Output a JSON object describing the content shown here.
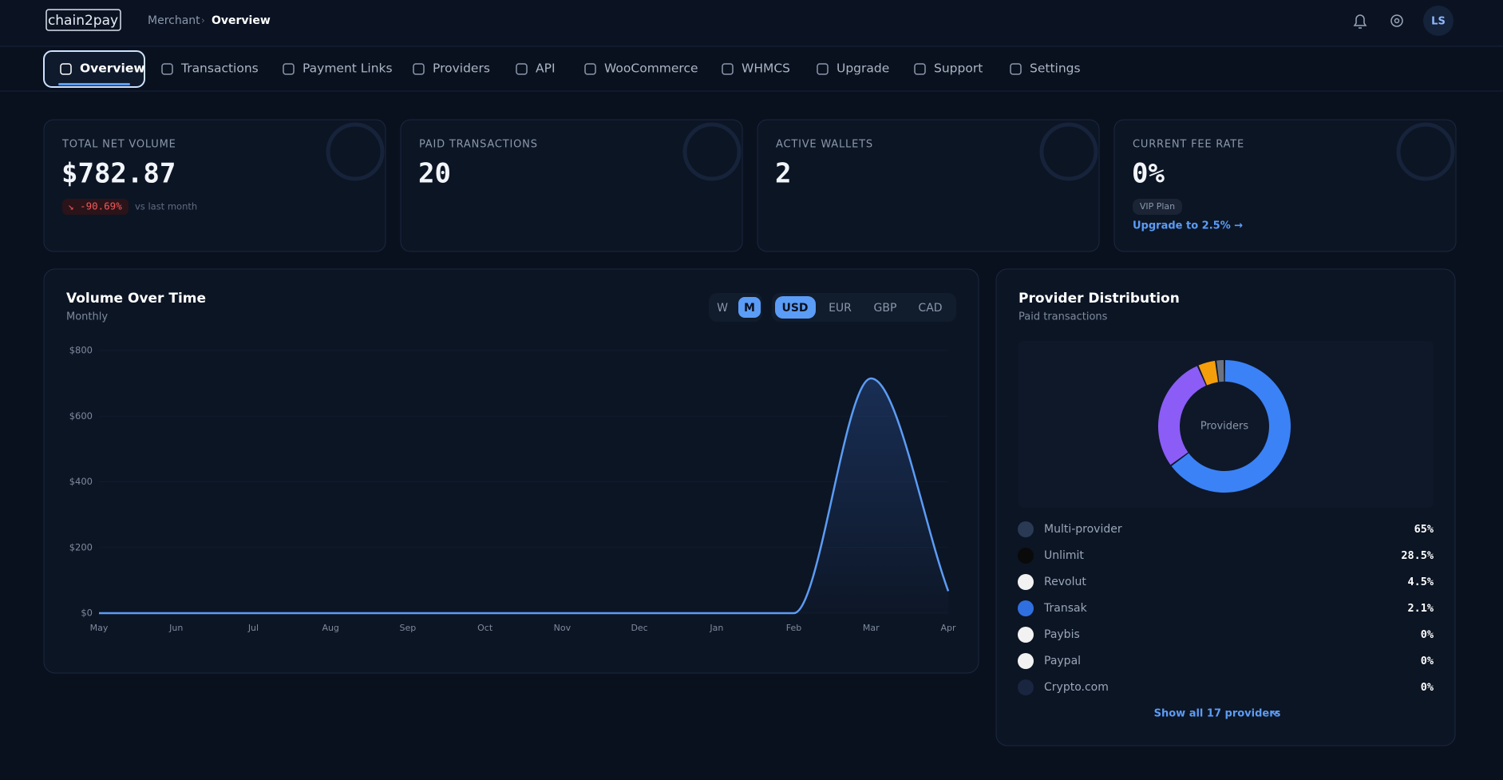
{
  "header": {
    "logo": "chain2pay",
    "breadcrumb": [
      "Merchant",
      "Overview"
    ],
    "avatar": "LS"
  },
  "nav": [
    "Overview",
    "Transactions",
    "Payment Links",
    "Providers",
    "API",
    "WooCommerce",
    "WHMCS",
    "Upgrade",
    "Support",
    "Settings"
  ],
  "stats": [
    {
      "label": "TOTAL NET VOLUME",
      "value": "$782.87",
      "change": "↘ -90.69%",
      "change_note": "vs last month"
    },
    {
      "label": "PAID TRANSACTIONS",
      "value": "20"
    },
    {
      "label": "ACTIVE WALLETS",
      "value": "2"
    },
    {
      "label": "CURRENT FEE RATE",
      "value": "0%",
      "badge": "VIP Plan",
      "link": "Upgrade to 2.5% →"
    }
  ],
  "chart_data": [
    {
      "type": "line",
      "title": "Volume Over Time",
      "subtitle": "Monthly",
      "intervals": [
        "W",
        "M"
      ],
      "currencies": [
        "USD",
        "EUR",
        "GBP",
        "CAD"
      ],
      "categories": [
        "May",
        "Jun",
        "Jul",
        "Aug",
        "Sep",
        "Oct",
        "Nov",
        "Dec",
        "Jan",
        "Feb",
        "Mar",
        "Apr"
      ],
      "values": [
        0,
        0,
        0,
        0,
        0,
        0,
        0,
        0,
        0,
        0,
        715,
        67
      ],
      "color": "#5b9cf6",
      "ylim": [
        0,
        800
      ],
      "yticks": [
        {
          "value": 0,
          "label": "$0"
        },
        {
          "value": 200,
          "label": "$200"
        },
        {
          "value": 400,
          "label": "$400"
        },
        {
          "value": 600,
          "label": "$600"
        },
        {
          "value": 800,
          "label": "$800"
        }
      ]
    },
    {
      "type": "pie",
      "title": "Provider Distribution",
      "subtitle": "Paid transactions",
      "center_label": "Providers",
      "categories": [
        "Multi-provider",
        "Unlimit",
        "Revolut",
        "Transak",
        "Paybis",
        "Paypal",
        "Crypto.com"
      ],
      "values": [
        65,
        28.5,
        4.5,
        2.1,
        0,
        0,
        0
      ],
      "value_labels": [
        "65%",
        "28.5%",
        "4.5%",
        "2.1%",
        "0%",
        "0%",
        "0%"
      ],
      "colors": [
        "#3b82f6",
        "#8b5cf6",
        "#f59e0b",
        "#6b7280",
        "#9ca3af",
        "#9ca3af",
        "#9ca3af"
      ],
      "footer": "Show all 17 providers"
    }
  ]
}
